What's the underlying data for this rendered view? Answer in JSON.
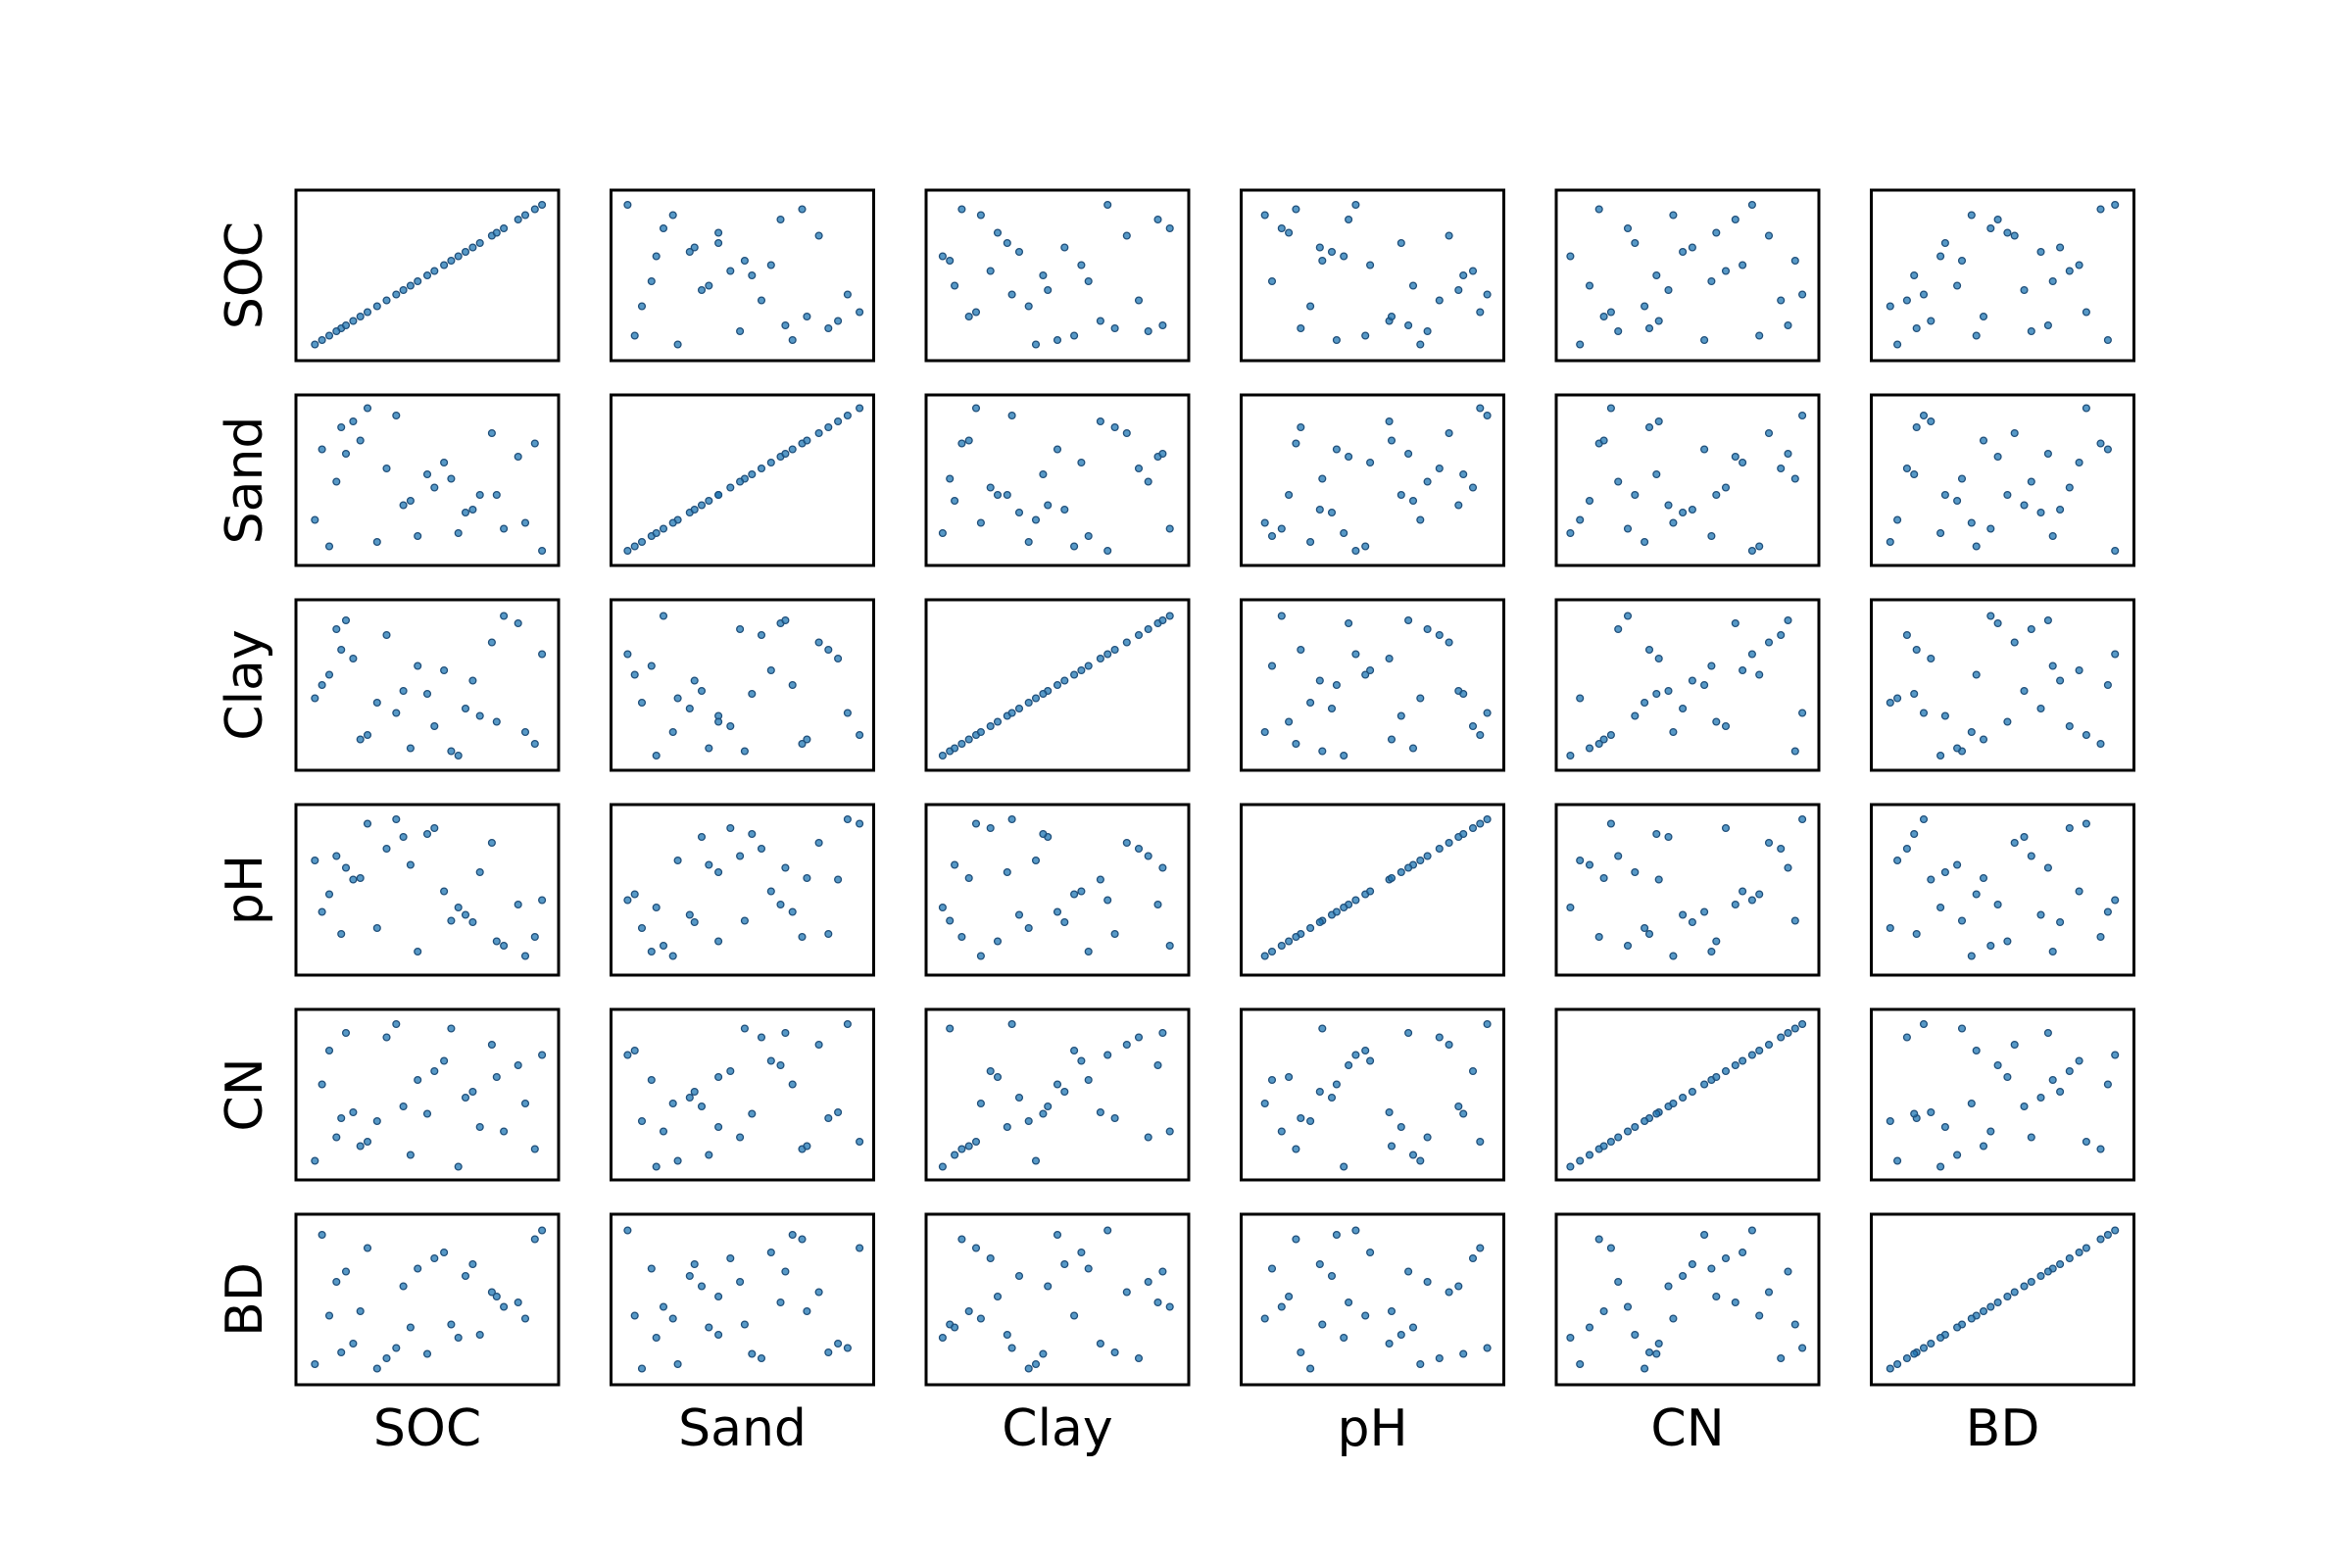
{
  "chart_data": {
    "type": "scatter",
    "subtype": "scatter-matrix",
    "variables": [
      "SOC",
      "Sand",
      "Clay",
      "pH",
      "CN",
      "BD"
    ],
    "row_labels": [
      "SOC",
      "Sand",
      "Clay",
      "pH",
      "CN",
      "BD"
    ],
    "column_labels": [
      "SOC",
      "Sand",
      "Clay",
      "pH",
      "CN",
      "BD"
    ],
    "axis_ticks": "hidden",
    "grid": false,
    "point_color": "#1f77b4",
    "data_range": [
      0,
      1
    ],
    "samples": [
      {
        "SOC": 0.14,
        "Sand": 0.86,
        "Clay": 0.74,
        "pH": 0.2,
        "CN": 0.34,
        "BD": 0.14
      },
      {
        "SOC": 0.4,
        "Sand": 0.33,
        "Clay": 0.46,
        "pH": 0.86,
        "CN": 0.42,
        "BD": 0.59
      },
      {
        "SOC": 0.6,
        "Sand": 0.51,
        "Clay": 0.05,
        "pH": 0.29,
        "CN": 0.95,
        "BD": 0.33
      },
      {
        "SOC": 0.03,
        "Sand": 0.23,
        "Clay": 0.41,
        "pH": 0.7,
        "CN": 0.05,
        "BD": 0.06
      },
      {
        "SOC": 0.88,
        "Sand": 0.66,
        "Clay": 0.92,
        "pH": 0.4,
        "CN": 0.7,
        "BD": 0.48
      },
      {
        "SOC": 0.25,
        "Sand": 0.99,
        "Clay": 0.16,
        "pH": 0.95,
        "CN": 0.18,
        "BD": 0.85
      },
      {
        "SOC": 0.46,
        "Sand": 0.12,
        "Clay": 0.63,
        "pH": 0.08,
        "CN": 0.6,
        "BD": 0.71
      },
      {
        "SOC": 0.72,
        "Sand": 0.4,
        "Clay": 0.29,
        "pH": 0.62,
        "CN": 0.28,
        "BD": 0.26
      },
      {
        "SOC": 0.09,
        "Sand": 0.05,
        "Clay": 0.57,
        "pH": 0.47,
        "CN": 0.8,
        "BD": 0.39
      },
      {
        "SOC": 0.95,
        "Sand": 0.75,
        "Clay": 0.1,
        "pH": 0.18,
        "CN": 0.13,
        "BD": 0.91
      },
      {
        "SOC": 0.33,
        "Sand": 0.58,
        "Clay": 0.84,
        "pH": 0.78,
        "CN": 0.89,
        "BD": 0.1
      },
      {
        "SOC": 0.66,
        "Sand": 0.28,
        "Clay": 0.34,
        "pH": 0.33,
        "CN": 0.48,
        "BD": 0.66
      },
      {
        "SOC": 0.19,
        "Sand": 0.9,
        "Clay": 0.68,
        "pH": 0.57,
        "CN": 0.38,
        "BD": 0.2
      },
      {
        "SOC": 0.53,
        "Sand": 0.45,
        "Clay": 0.22,
        "pH": 0.92,
        "CN": 0.66,
        "BD": 0.78
      },
      {
        "SOC": 0.82,
        "Sand": 0.17,
        "Clay": 0.97,
        "pH": 0.12,
        "CN": 0.25,
        "BD": 0.45
      },
      {
        "SOC": 0.06,
        "Sand": 0.71,
        "Clay": 0.5,
        "pH": 0.35,
        "CN": 0.57,
        "BD": 0.94
      },
      {
        "SOC": 0.43,
        "Sand": 0.36,
        "Clay": 0.07,
        "pH": 0.67,
        "CN": 0.09,
        "BD": 0.31
      },
      {
        "SOC": 0.77,
        "Sand": 0.82,
        "Clay": 0.79,
        "pH": 0.82,
        "CN": 0.84,
        "BD": 0.55
      },
      {
        "SOC": 0.29,
        "Sand": 0.08,
        "Clay": 0.38,
        "pH": 0.24,
        "CN": 0.32,
        "BD": 0.03
      },
      {
        "SOC": 0.57,
        "Sand": 0.62,
        "Clay": 0.6,
        "pH": 0.49,
        "CN": 0.73,
        "BD": 0.82
      },
      {
        "SOC": 0.91,
        "Sand": 0.21,
        "Clay": 0.18,
        "pH": 0.05,
        "CN": 0.44,
        "BD": 0.37
      },
      {
        "SOC": 0.12,
        "Sand": 0.49,
        "Clay": 0.88,
        "pH": 0.73,
        "CN": 0.21,
        "BD": 0.62
      },
      {
        "SOC": 0.37,
        "Sand": 0.94,
        "Clay": 0.31,
        "pH": 0.98,
        "CN": 0.98,
        "BD": 0.17
      },
      {
        "SOC": 0.69,
        "Sand": 0.3,
        "Clay": 0.53,
        "pH": 0.28,
        "CN": 0.52,
        "BD": 0.74
      },
      {
        "SOC": 0.22,
        "Sand": 0.77,
        "Clay": 0.13,
        "pH": 0.58,
        "CN": 0.15,
        "BD": 0.42
      },
      {
        "SOC": 0.98,
        "Sand": 0.02,
        "Clay": 0.71,
        "pH": 0.43,
        "CN": 0.77,
        "BD": 0.97
      },
      {
        "SOC": 0.5,
        "Sand": 0.54,
        "Clay": 0.44,
        "pH": 0.88,
        "CN": 0.37,
        "BD": 0.13
      },
      {
        "SOC": 0.79,
        "Sand": 0.4,
        "Clay": 0.25,
        "pH": 0.15,
        "CN": 0.62,
        "BD": 0.52
      },
      {
        "SOC": 0.16,
        "Sand": 0.68,
        "Clay": 0.94,
        "pH": 0.65,
        "CN": 0.92,
        "BD": 0.69
      },
      {
        "SOC": 0.63,
        "Sand": 0.14,
        "Clay": 0.02,
        "pH": 0.38,
        "CN": 0.01,
        "BD": 0.24
      }
    ]
  }
}
